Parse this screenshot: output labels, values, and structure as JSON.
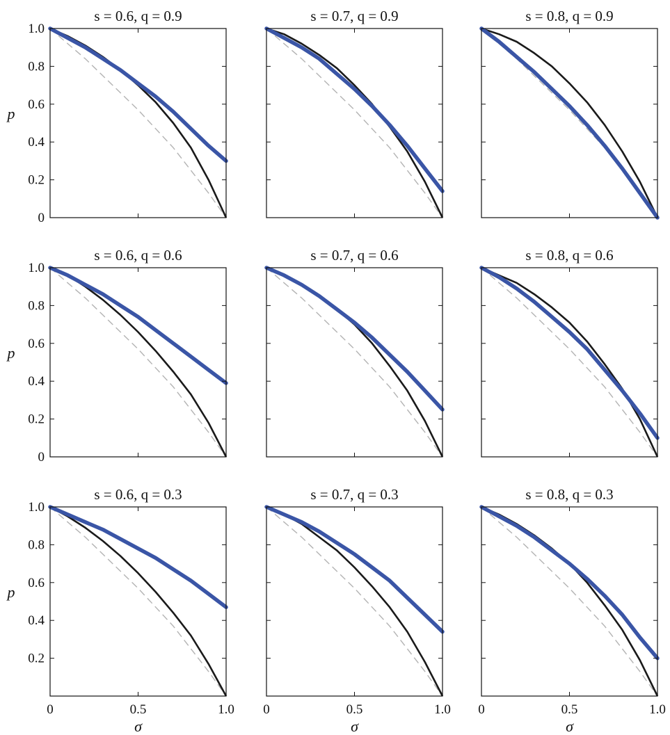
{
  "chart_data": {
    "type": "line",
    "layout": "3x3 grid of panels",
    "x_label": "σ",
    "y_label": "p",
    "xlim": [
      0,
      1
    ],
    "ylim": [
      0,
      1
    ],
    "x_ticks": [
      "0",
      "0.5",
      "1.0"
    ],
    "y_ticks_top_rows": [
      "0",
      "0.2",
      "0.4",
      "0.6",
      "0.8",
      "1.0"
    ],
    "y_ticks_bottom_row": [
      "0.2",
      "0.4",
      "0.6",
      "0.8",
      "1.0"
    ],
    "grid": false,
    "colors": {
      "blue": "#3a55a6",
      "black": "#1a1a1a",
      "dashed": "#b3b3b3"
    },
    "x": [
      0,
      0.1,
      0.2,
      0.3,
      0.4,
      0.5,
      0.6,
      0.7,
      0.8,
      0.9,
      1.0
    ],
    "panels": [
      {
        "title": "s = 0.6, q = 0.9",
        "black": [
          1.0,
          0.96,
          0.91,
          0.85,
          0.78,
          0.7,
          0.61,
          0.5,
          0.37,
          0.2,
          0.0
        ],
        "blue": [
          1.0,
          0.95,
          0.9,
          0.84,
          0.78,
          0.71,
          0.64,
          0.56,
          0.47,
          0.38,
          0.3
        ],
        "dashed": [
          1.0,
          0.92,
          0.84,
          0.75,
          0.66,
          0.57,
          0.47,
          0.37,
          0.25,
          0.13,
          0.0
        ]
      },
      {
        "title": "s = 0.7, q = 0.9",
        "black": [
          1.0,
          0.97,
          0.92,
          0.86,
          0.79,
          0.7,
          0.6,
          0.48,
          0.35,
          0.19,
          0.0
        ],
        "blue": [
          1.0,
          0.95,
          0.9,
          0.84,
          0.76,
          0.68,
          0.59,
          0.49,
          0.38,
          0.26,
          0.14
        ],
        "dashed": [
          1.0,
          0.92,
          0.84,
          0.75,
          0.66,
          0.57,
          0.47,
          0.37,
          0.25,
          0.13,
          0.0
        ]
      },
      {
        "title": "s = 0.8, q = 0.9",
        "black": [
          1.0,
          0.97,
          0.93,
          0.87,
          0.8,
          0.71,
          0.61,
          0.49,
          0.35,
          0.19,
          0.0
        ],
        "blue": [
          1.0,
          0.93,
          0.85,
          0.77,
          0.68,
          0.59,
          0.49,
          0.38,
          0.26,
          0.13,
          0.0
        ],
        "dashed": [
          1.0,
          0.92,
          0.84,
          0.75,
          0.66,
          0.57,
          0.47,
          0.37,
          0.25,
          0.13,
          0.0
        ]
      },
      {
        "title": "s = 0.6, q = 0.6",
        "black": [
          1.0,
          0.96,
          0.9,
          0.83,
          0.75,
          0.66,
          0.56,
          0.45,
          0.33,
          0.18,
          0.0
        ],
        "blue": [
          1.0,
          0.96,
          0.91,
          0.86,
          0.8,
          0.74,
          0.67,
          0.6,
          0.53,
          0.46,
          0.39
        ],
        "dashed": [
          1.0,
          0.92,
          0.84,
          0.75,
          0.66,
          0.57,
          0.47,
          0.37,
          0.25,
          0.13,
          0.0
        ]
      },
      {
        "title": "s = 0.7, q = 0.6",
        "black": [
          1.0,
          0.96,
          0.91,
          0.85,
          0.78,
          0.7,
          0.6,
          0.48,
          0.35,
          0.19,
          0.0
        ],
        "blue": [
          1.0,
          0.96,
          0.91,
          0.85,
          0.78,
          0.71,
          0.63,
          0.54,
          0.45,
          0.35,
          0.25
        ],
        "dashed": [
          1.0,
          0.92,
          0.84,
          0.75,
          0.66,
          0.57,
          0.47,
          0.37,
          0.25,
          0.13,
          0.0
        ]
      },
      {
        "title": "s = 0.8, q = 0.6",
        "black": [
          1.0,
          0.96,
          0.92,
          0.86,
          0.79,
          0.71,
          0.61,
          0.49,
          0.36,
          0.2,
          0.0
        ],
        "blue": [
          1.0,
          0.95,
          0.89,
          0.82,
          0.74,
          0.66,
          0.57,
          0.46,
          0.35,
          0.23,
          0.1
        ],
        "dashed": [
          1.0,
          0.92,
          0.84,
          0.75,
          0.66,
          0.57,
          0.47,
          0.37,
          0.25,
          0.13,
          0.0
        ]
      },
      {
        "title": "s = 0.6, q = 0.3",
        "black": [
          1.0,
          0.95,
          0.89,
          0.82,
          0.74,
          0.65,
          0.55,
          0.44,
          0.32,
          0.17,
          0.0
        ],
        "blue": [
          1.0,
          0.96,
          0.92,
          0.88,
          0.83,
          0.78,
          0.73,
          0.67,
          0.61,
          0.54,
          0.47
        ],
        "dashed": [
          1.0,
          0.92,
          0.84,
          0.75,
          0.66,
          0.57,
          0.47,
          0.37,
          0.25,
          0.13,
          0.0
        ]
      },
      {
        "title": "s = 0.7, q = 0.3",
        "black": [
          1.0,
          0.96,
          0.91,
          0.84,
          0.77,
          0.68,
          0.58,
          0.47,
          0.34,
          0.18,
          0.0
        ],
        "blue": [
          1.0,
          0.96,
          0.92,
          0.87,
          0.81,
          0.75,
          0.68,
          0.61,
          0.52,
          0.43,
          0.34
        ],
        "dashed": [
          1.0,
          0.92,
          0.84,
          0.75,
          0.66,
          0.57,
          0.47,
          0.37,
          0.25,
          0.13,
          0.0
        ]
      },
      {
        "title": "s = 0.8, q = 0.3",
        "black": [
          1.0,
          0.96,
          0.91,
          0.85,
          0.78,
          0.7,
          0.6,
          0.48,
          0.35,
          0.19,
          0.0
        ],
        "blue": [
          1.0,
          0.95,
          0.9,
          0.84,
          0.77,
          0.7,
          0.62,
          0.53,
          0.43,
          0.31,
          0.2
        ],
        "dashed": [
          1.0,
          0.92,
          0.84,
          0.75,
          0.66,
          0.57,
          0.47,
          0.37,
          0.25,
          0.13,
          0.0
        ]
      }
    ]
  }
}
